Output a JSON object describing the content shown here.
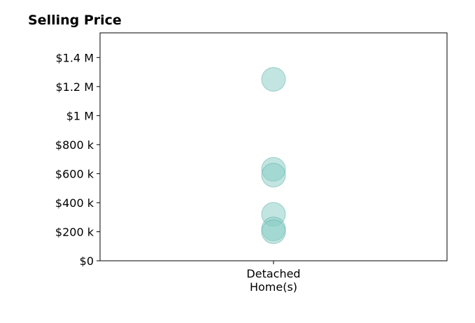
{
  "chart_data": {
    "type": "scatter",
    "title": "Selling Price",
    "xlabel": "",
    "ylabel": "",
    "categories": [
      "Detached\nHome(s)"
    ],
    "series": [
      {
        "category": "Detached\nHome(s)",
        "values": [
          1250000,
          630000,
          590000,
          320000,
          220000,
          200000
        ]
      }
    ],
    "ylim": [
      0,
      1570000
    ],
    "yticks": [
      0,
      200000,
      400000,
      600000,
      800000,
      1000000,
      1200000,
      1400000
    ],
    "ytick_labels": [
      "$0",
      "$200 k",
      "$400 k",
      "$600 k",
      "$800 k",
      "$1 M",
      "$1.2 M",
      "$1.4 M"
    ],
    "grid": false,
    "legend": "none",
    "colors": {
      "marker_fill": "#86cbc3",
      "marker_stroke": "#5fb3a8",
      "axis": "#000000"
    }
  }
}
